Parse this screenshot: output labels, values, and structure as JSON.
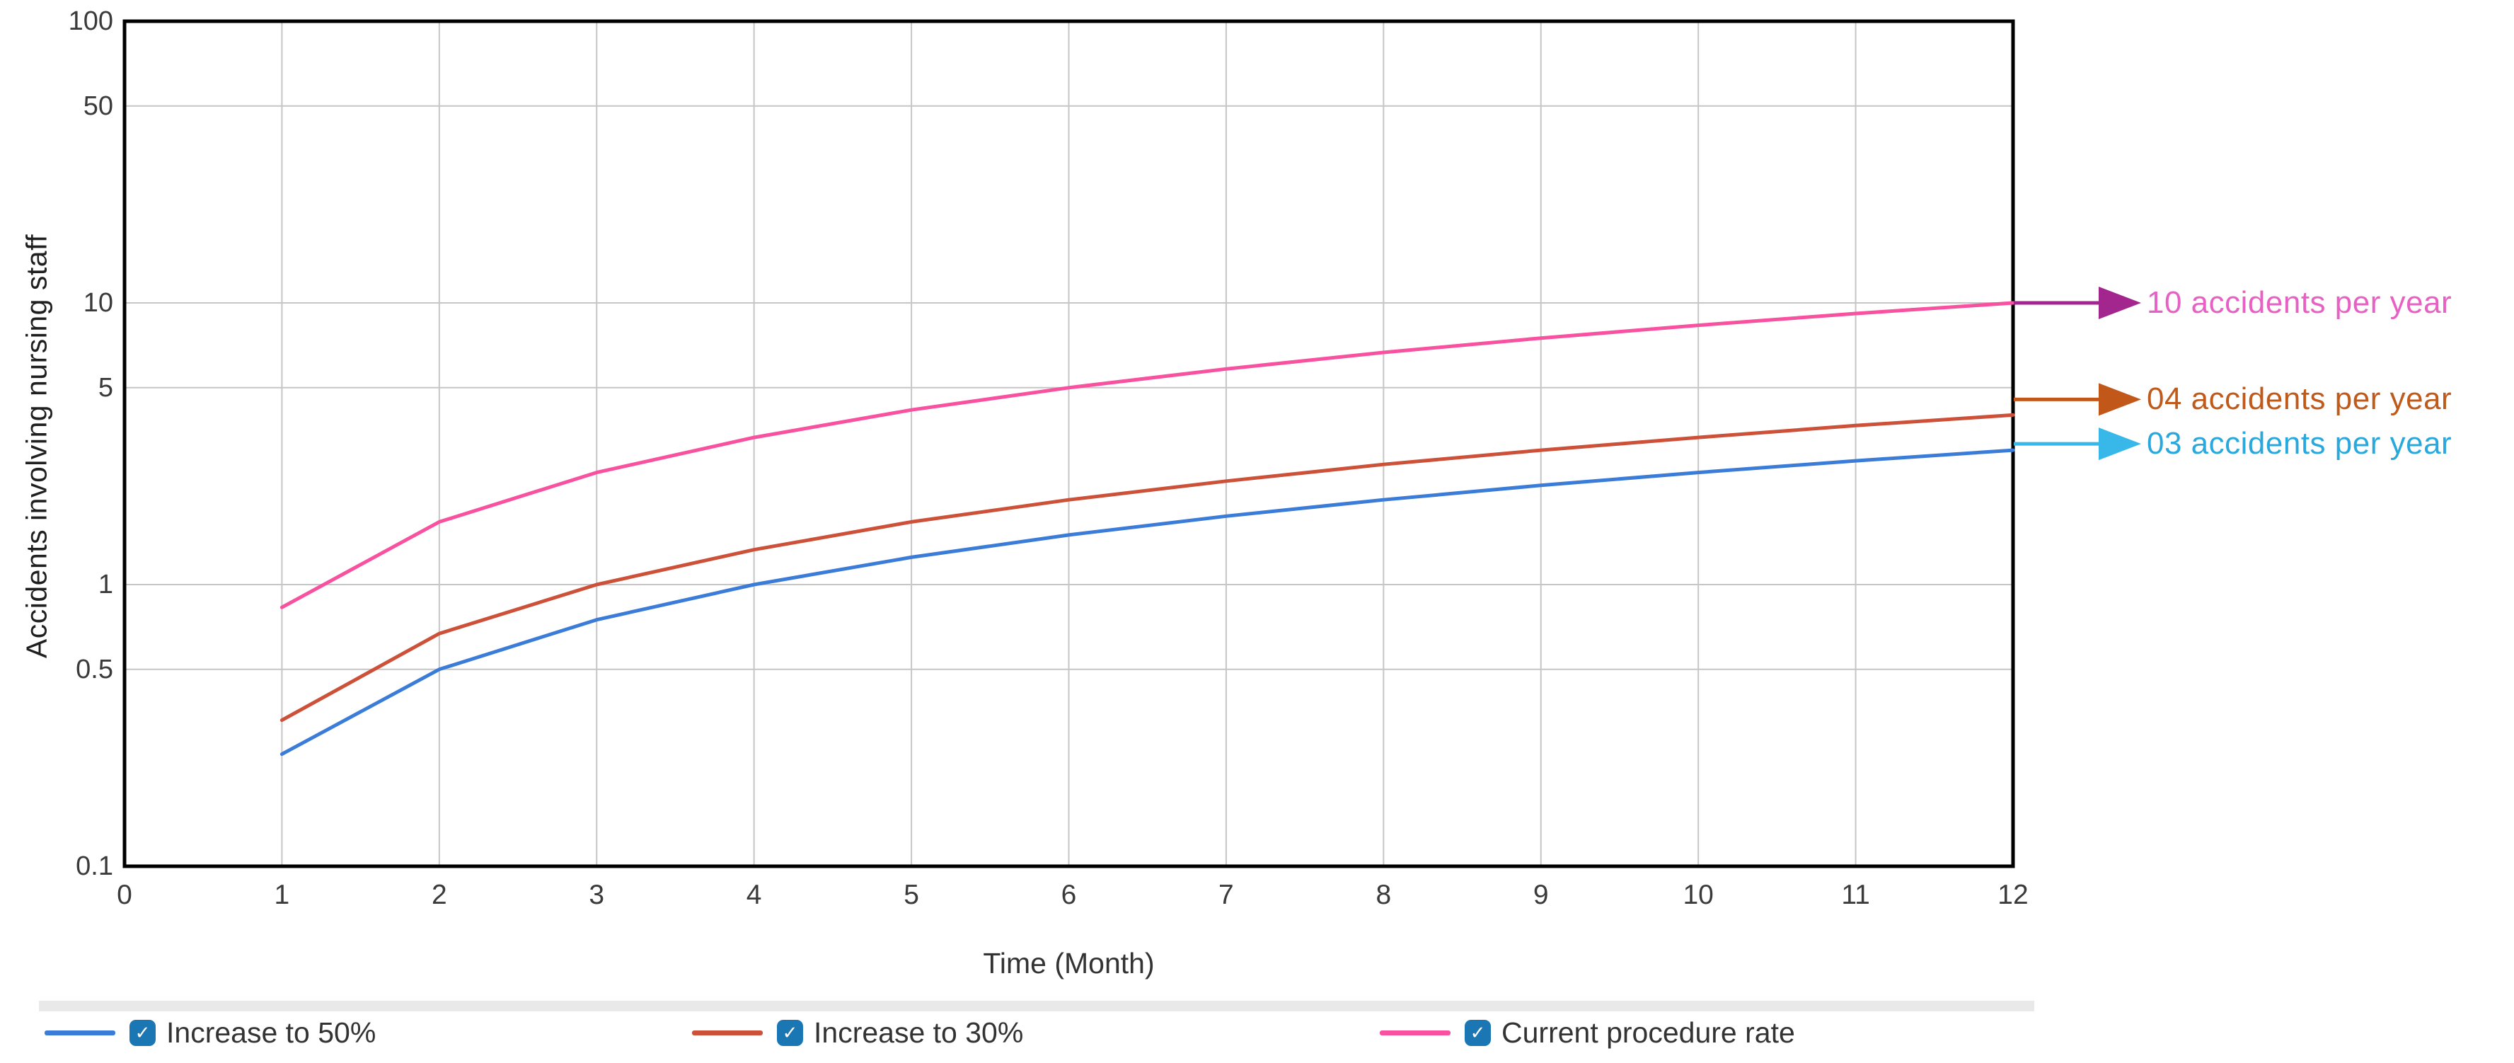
{
  "chart_data": {
    "type": "line",
    "xlabel": "Time (Month)",
    "ylabel": "Accidents involving nursing staff",
    "x_scale": "linear",
    "y_scale": "log",
    "xlim": [
      0,
      12
    ],
    "ylim": [
      0.1,
      100
    ],
    "x_ticks": [
      0,
      1,
      2,
      3,
      4,
      5,
      6,
      7,
      8,
      9,
      10,
      11,
      12
    ],
    "y_ticks": [
      100,
      50,
      10,
      5,
      1,
      0.5,
      0.1
    ],
    "y_gridlines": [
      50,
      10,
      5,
      1,
      0.5
    ],
    "grid": true,
    "x": [
      1,
      2,
      3,
      4,
      5,
      6,
      7,
      8,
      9,
      10,
      11,
      12
    ],
    "series": [
      {
        "name": "Increase to 50%",
        "color": "#3a7cd8",
        "values": [
          0.25,
          0.5,
          0.75,
          1.0,
          1.25,
          1.5,
          1.75,
          2.0,
          2.25,
          2.5,
          2.75,
          3.0
        ]
      },
      {
        "name": "Increase to 30%",
        "color": "#cd5138",
        "values": [
          0.33,
          0.67,
          1.0,
          1.33,
          1.67,
          2.0,
          2.33,
          2.67,
          3.0,
          3.33,
          3.67,
          4.0
        ]
      },
      {
        "name": "Current procedure rate",
        "color": "#f7519f",
        "values": [
          0.83,
          1.67,
          2.5,
          3.33,
          4.17,
          5.0,
          5.83,
          6.67,
          7.5,
          8.33,
          9.17,
          10.0
        ]
      }
    ],
    "annotations": [
      {
        "label": "10 accidents per year",
        "value": 10,
        "text_color": "#e661c3",
        "arrow_color": "#a3268f"
      },
      {
        "label": "04 accidents per year",
        "value": 4,
        "text_color": "#c05a1a",
        "arrow_color": "#c2571a"
      },
      {
        "label": "03 accidents per year",
        "value": 3,
        "text_color": "#29a8dd",
        "arrow_color": "#38b8e8"
      }
    ],
    "legend": {
      "position": "bottom",
      "checkbox_color": "#1b76b4",
      "check_glyph": "✓",
      "items": [
        {
          "label": "Increase to 50%",
          "color": "#3a7cd8",
          "checked": true
        },
        {
          "label": "Increase to 30%",
          "color": "#cd5138",
          "checked": true
        },
        {
          "label": "Current procedure rate",
          "color": "#f7519f",
          "checked": true
        }
      ]
    },
    "colors": {
      "grid": "#c6c6c6",
      "plot_border": "#000000",
      "tick_text": "#3a3a3a",
      "axis_title_text": "#333333",
      "legend_divider": "#e9e9e9"
    }
  }
}
